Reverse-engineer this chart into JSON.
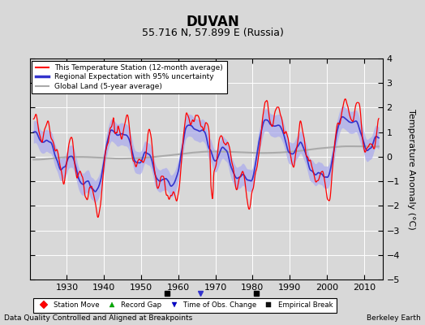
{
  "title": "DUVAN",
  "subtitle": "55.716 N, 57.899 E (Russia)",
  "ylabel": "Temperature Anomaly (°C)",
  "footer_left": "Data Quality Controlled and Aligned at Breakpoints",
  "footer_right": "Berkeley Earth",
  "ylim": [
    -5,
    4
  ],
  "xlim": [
    1920,
    2015
  ],
  "xticks": [
    1930,
    1940,
    1950,
    1960,
    1970,
    1980,
    1990,
    2000,
    2010
  ],
  "yticks": [
    -5,
    -4,
    -3,
    -2,
    -1,
    0,
    1,
    2,
    3,
    4
  ],
  "bg_color": "#d8d8d8",
  "plot_bg_color": "#d8d8d8",
  "station_color": "#ff0000",
  "regional_color": "#3333cc",
  "regional_band_color": "#aaaaee",
  "global_color": "#aaaaaa",
  "empirical_breaks": [
    1957,
    1981
  ],
  "time_of_obs_change": [
    1966
  ],
  "seed": 12345
}
